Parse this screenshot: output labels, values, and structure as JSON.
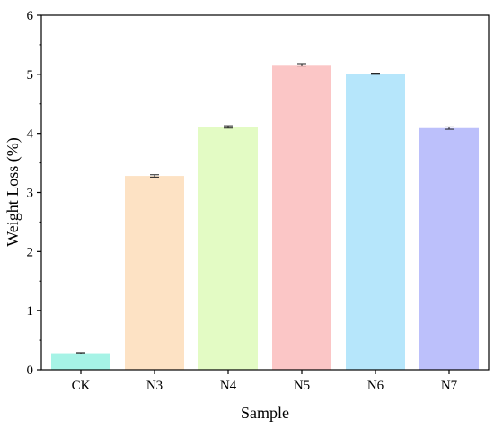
{
  "chart_data": {
    "type": "bar",
    "xlabel": "Sample",
    "ylabel": "Weight Loss (%)",
    "categories": [
      "CK",
      "N3",
      "N4",
      "N5",
      "N6",
      "N7"
    ],
    "values": [
      0.28,
      3.28,
      4.11,
      5.16,
      5.01,
      4.09
    ],
    "error": [
      0.01,
      0.02,
      0.02,
      0.02,
      0.01,
      0.02
    ],
    "colors": [
      "#a6f3e6",
      "#fde2c4",
      "#e3fbc4",
      "#fbc6c6",
      "#b6e6fb",
      "#bcc0fb"
    ],
    "ylim": [
      0,
      6
    ],
    "yticks": [
      "0",
      "1",
      "2",
      "3",
      "4",
      "5",
      "6"
    ],
    "grid": false,
    "legend": "none"
  }
}
